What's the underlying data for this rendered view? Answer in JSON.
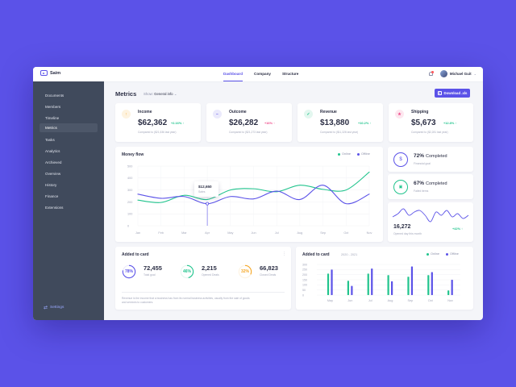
{
  "app": {
    "name": "Saim"
  },
  "nav": [
    "Dashboard",
    "Company",
    "Structure"
  ],
  "user": {
    "name": "Michael Guit"
  },
  "sidebar": {
    "items": [
      "Documents",
      "Members",
      "Timeline",
      "Metrics",
      "Tasks",
      "Analytics",
      "Archieved",
      "Overview",
      "History",
      "Finance",
      "Extensions"
    ],
    "active": "Metrics",
    "settings": "Settings"
  },
  "page": {
    "title": "Metrics",
    "show_label": "Show:",
    "show_value": "General info",
    "download_label": "Download .xls"
  },
  "stats": [
    {
      "label": "Income",
      "value": "$62,362",
      "change": "+2.16% ↑",
      "sub": "Compared to ($21,536 last year)",
      "color": "#f5a623",
      "bg": "#fef3e0",
      "icon": "income-icon"
    },
    {
      "label": "Outcome",
      "value": "$26,282",
      "change": "+16% ↑",
      "sub": "Compared to ($21,273 last year)",
      "color": "#5b52e8",
      "bg": "#ebeafc",
      "icon": "outcome-icon"
    },
    {
      "label": "Revenue",
      "value": "$13,880",
      "change": "+10.2% ↑",
      "sub": "Compared to ($11,326 last year)",
      "color": "#21c48d",
      "bg": "#e3f7ef",
      "icon": "revenue-icon"
    },
    {
      "label": "Shipping",
      "value": "$5,673",
      "change": "+12.8% ↑",
      "sub": "Compared to ($2,281 last year)",
      "color": "#ef4b8a",
      "bg": "#fde7ef",
      "icon": "shipping-icon"
    }
  ],
  "money_flow": {
    "title": "Money flow",
    "legend": [
      "Online",
      "Offline"
    ],
    "tooltip": {
      "value": "$12,650",
      "label": "Sales"
    },
    "colors": {
      "online": "#21c48d",
      "offline": "#5b52e8"
    }
  },
  "side_stats": [
    {
      "pct": "72%",
      "label": "Completed",
      "desc": "Financial goal",
      "icon": "dollar-icon"
    },
    {
      "pct": "67%",
      "label": "Completed",
      "desc": "Failed items",
      "icon": "lock-icon"
    }
  ],
  "spark": {
    "value": "16,272",
    "change": "+42% ↑",
    "desc": "Opened day this month"
  },
  "added_left": {
    "title": "Added to card",
    "items": [
      {
        "ring": "78%",
        "value": "72,455",
        "label": "Total goal",
        "color": "#5b52e8"
      },
      {
        "ring": "46%",
        "value": "2,215",
        "label": "Opened Deals",
        "color": "#21c48d"
      },
      {
        "ring": "32%",
        "value": "66,823",
        "label": "Closed Deals",
        "color": "#f5a623"
      }
    ],
    "note": "Revenue is the income that a business has from its normal business activities, usually from the sale of goods and services to customers."
  },
  "added_right": {
    "title": "Added to card",
    "range": "2020 - 2021",
    "legend": [
      "Online",
      "Offline"
    ]
  },
  "chart_data": [
    {
      "type": "line",
      "title": "Money flow",
      "x": [
        "Jan",
        "Feb",
        "Mar",
        "Apr",
        "May",
        "Jun",
        "Jul",
        "Aug",
        "Sep",
        "Oct",
        "Nov"
      ],
      "ylim": [
        0,
        500
      ],
      "yticks": [
        0,
        100,
        200,
        300,
        400,
        500
      ],
      "series": [
        {
          "name": "Online",
          "values": [
            215,
            195,
            255,
            220,
            300,
            310,
            285,
            340,
            305,
            300,
            450
          ]
        },
        {
          "name": "Offline",
          "values": [
            265,
            230,
            245,
            185,
            245,
            225,
            290,
            220,
            340,
            185,
            265
          ]
        }
      ],
      "annotation": {
        "x": "Apr",
        "value": "$12,650",
        "label": "Sales"
      }
    },
    {
      "type": "line",
      "values": [
        22,
        18,
        12,
        20,
        16,
        14,
        20,
        28,
        16,
        20,
        14,
        22,
        18,
        24,
        20
      ]
    },
    {
      "type": "bar",
      "title": "Added to card",
      "categories": [
        "May",
        "Jun",
        "Jul",
        "Aug",
        "Sep",
        "Oct",
        "Nov"
      ],
      "ylim": [
        0,
        300
      ],
      "yticks": [
        0,
        50,
        100,
        150,
        200,
        250,
        300
      ],
      "series": [
        {
          "name": "Online",
          "values": [
            210,
            140,
            210,
            195,
            180,
            195,
            45
          ]
        },
        {
          "name": "Offline",
          "values": [
            250,
            90,
            260,
            135,
            280,
            225,
            150
          ]
        }
      ]
    }
  ]
}
